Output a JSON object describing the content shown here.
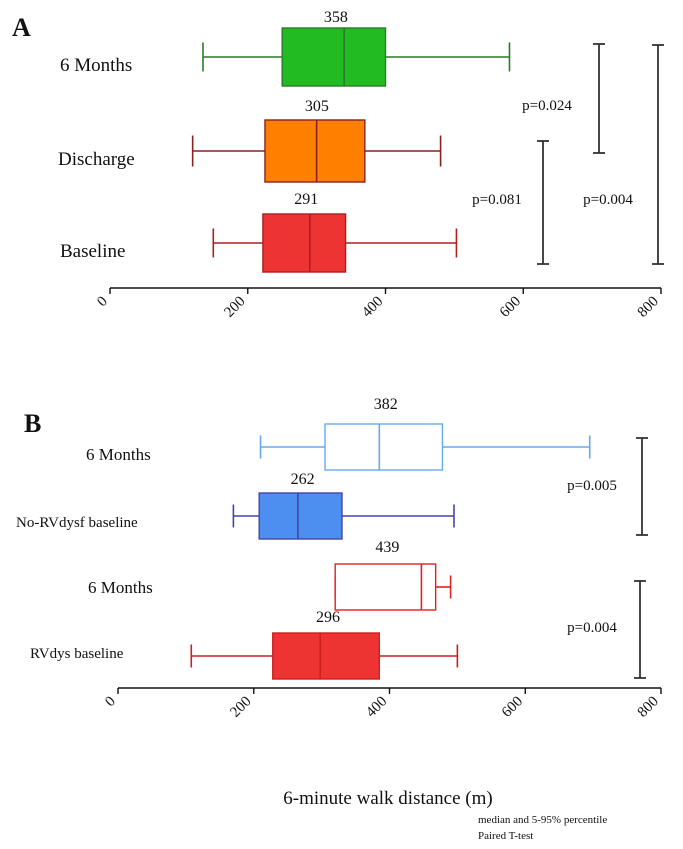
{
  "figure": {
    "xlabel": "6-minute walk distance (m)",
    "footnotes": [
      "median and 5-95% percentile",
      "Paired T-test"
    ],
    "colors": {
      "axis": "#111111",
      "bracket": "#333333"
    }
  },
  "chart_data": [
    {
      "panel": "A",
      "type": "boxplot",
      "orientation": "horizontal",
      "xlim": [
        0,
        800
      ],
      "xticks": [
        "0",
        "200",
        "400",
        "600",
        "800"
      ],
      "categories": [
        "6 Months",
        "Discharge",
        "Baseline"
      ],
      "boxes": [
        {
          "label": "6 Months",
          "whisker_low": 135,
          "q1": 250,
          "median": 340,
          "q3": 400,
          "whisker_high": 580,
          "mean_label": "358",
          "fill": "#22bb22",
          "stroke": "#2a7a2a"
        },
        {
          "label": "Discharge",
          "whisker_low": 120,
          "q1": 225,
          "median": 300,
          "q3": 370,
          "whisker_high": 480,
          "mean_label": "305",
          "fill": "#ff8000",
          "stroke": "#8b2020"
        },
        {
          "label": "Baseline",
          "whisker_low": 150,
          "q1": 222,
          "median": 290,
          "q3": 342,
          "whisker_high": 503,
          "mean_label": "291",
          "fill": "#ee3333",
          "stroke": "#aa2020"
        }
      ],
      "comparisons": [
        {
          "text": "p=0.024",
          "from": "6 Months",
          "to": "Discharge"
        },
        {
          "text": "p=0.081",
          "from": "Discharge",
          "to": "Baseline"
        },
        {
          "text": "p=0.004",
          "from": "6 Months",
          "to": "Baseline"
        }
      ]
    },
    {
      "panel": "B",
      "type": "boxplot",
      "orientation": "horizontal",
      "xlim": [
        0,
        800
      ],
      "xticks": [
        "0",
        "200",
        "400",
        "600",
        "800"
      ],
      "categories": [
        "6 Months",
        "No-RVdysf baseline",
        "6 Months",
        "RVdys baseline"
      ],
      "boxes": [
        {
          "label": "6 Months",
          "whisker_low": 210,
          "q1": 305,
          "median": 385,
          "q3": 478,
          "whisker_high": 695,
          "mean_label": "382",
          "fill": "#ffffff",
          "stroke": "#66aaee"
        },
        {
          "label": "No-RVdysf baseline",
          "whisker_low": 170,
          "q1": 208,
          "median": 265,
          "q3": 330,
          "whisker_high": 495,
          "mean_label": "262",
          "fill": "#4d8ff0",
          "stroke": "#4444aa"
        },
        {
          "label": "6 Months",
          "whisker_low": 320,
          "q1": 320,
          "median": 447,
          "q3": 468,
          "whisker_high": 490,
          "mean_label": "439",
          "fill": "#ffffff",
          "stroke": "#dd2222"
        },
        {
          "label": "RVdys baseline",
          "whisker_low": 108,
          "q1": 228,
          "median": 298,
          "q3": 385,
          "whisker_high": 500,
          "mean_label": "296",
          "fill": "#ee3333",
          "stroke": "#cc2020"
        }
      ],
      "comparisons": [
        {
          "text": "p=0.005",
          "from": "6 Months",
          "to": "No-RVdysf baseline"
        },
        {
          "text": "p=0.004",
          "from": "6 Months",
          "to": "RVdys baseline"
        }
      ]
    }
  ]
}
